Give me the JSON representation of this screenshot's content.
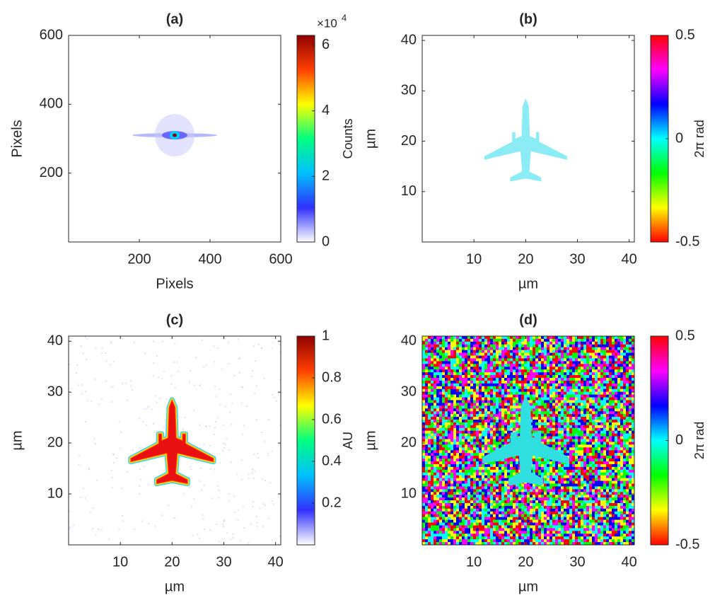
{
  "chart_data": [
    {
      "type": "heatmap",
      "title": "(a)",
      "x_label": "Pixels",
      "y_label": "Pixels",
      "xlim": [
        0,
        600
      ],
      "ylim": [
        0,
        600
      ],
      "xticks": [
        200,
        400,
        600
      ],
      "yticks": [
        200,
        400,
        600
      ],
      "colorbar": {
        "label": "Counts",
        "lim": [
          0,
          6.3
        ],
        "ticks": [
          0,
          2,
          4,
          6
        ],
        "multiplier": "×10",
        "exponent": "4",
        "colormap": [
          "#ffffff",
          "#3030ff",
          "#00c0ff",
          "#00ff80",
          "#ffff00",
          "#ff4000",
          "#900000"
        ]
      }
    },
    {
      "type": "heatmap",
      "title": "(b)",
      "x_label": "µm",
      "y_label": "µm",
      "xlim": [
        0,
        41
      ],
      "ylim": [
        0,
        41
      ],
      "xticks": [
        10,
        20,
        30,
        40
      ],
      "yticks": [
        10,
        20,
        30,
        40
      ],
      "colorbar": {
        "label": "2π rad",
        "lim": [
          -0.5,
          0.5
        ],
        "ticks": [
          -0.5,
          0,
          0.5
        ],
        "colormap": [
          "#ff0000",
          "#ffff00",
          "#00ff00",
          "#00ffff",
          "#0000ff",
          "#ff00ff",
          "#ff0000"
        ]
      }
    },
    {
      "type": "heatmap",
      "title": "(c)",
      "x_label": "µm",
      "y_label": "µm",
      "xlim": [
        0,
        41
      ],
      "ylim": [
        0,
        41
      ],
      "xticks": [
        10,
        20,
        30,
        40
      ],
      "yticks": [
        10,
        20,
        30,
        40
      ],
      "colorbar": {
        "label": "AU",
        "lim": [
          0,
          1
        ],
        "ticks": [
          0.2,
          0.4,
          0.6,
          0.8,
          1
        ],
        "colormap": [
          "#ffffff",
          "#3030ff",
          "#00c0ff",
          "#00ff80",
          "#ffff00",
          "#ff4000",
          "#900000"
        ]
      }
    },
    {
      "type": "heatmap",
      "title": "(d)",
      "x_label": "µm",
      "y_label": "µm",
      "xlim": [
        0,
        41
      ],
      "ylim": [
        0,
        41
      ],
      "xticks": [
        10,
        20,
        30,
        40
      ],
      "yticks": [
        10,
        20,
        30,
        40
      ],
      "colorbar": {
        "label": "2π rad",
        "lim": [
          -0.5,
          0.5
        ],
        "ticks": [
          -0.5,
          0,
          0.5
        ],
        "colormap": [
          "#ff0000",
          "#ffff00",
          "#00ff00",
          "#00ffff",
          "#0000ff",
          "#ff00ff",
          "#ff0000"
        ]
      }
    }
  ]
}
